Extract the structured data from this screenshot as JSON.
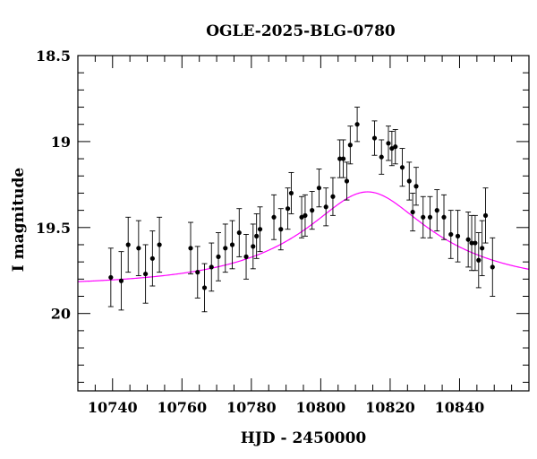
{
  "chart_data": {
    "type": "scatter",
    "title": "OGLE-2025-BLG-0780",
    "xlabel": "HJD - 2450000",
    "ylabel": "I magnitude",
    "xlim": [
      10730,
      10860
    ],
    "ylim": [
      20.45,
      18.5
    ],
    "y_inverted": true,
    "x_ticks": [
      10740,
      10760,
      10780,
      10800,
      10820,
      10840
    ],
    "x_tick_labels": [
      "10740",
      "10760",
      "10780",
      "10800",
      "10820",
      "10840"
    ],
    "y_ticks": [
      18.5,
      19,
      19.5,
      20
    ],
    "y_tick_labels": [
      "18.5",
      "19",
      "19.5",
      "20"
    ],
    "grid": false,
    "colors": {
      "points": "#000000",
      "errorbars": "#000000",
      "model": "#ff00ff"
    },
    "series": [
      {
        "kind": "points_with_errorbars",
        "x": [
          10739.5,
          10742.5,
          10744.5,
          10747.5,
          10749.5,
          10751.5,
          10753.5,
          10762.5,
          10764.5,
          10766.5,
          10768.5,
          10770.5,
          10772.5,
          10774.5,
          10776.5,
          10778.5,
          10780.5,
          10781.5,
          10782.5,
          10786.5,
          10788.5,
          10790.5,
          10791.5,
          10794.5,
          10795.5,
          10797.5,
          10799.5,
          10801.5,
          10803.5,
          10805.5,
          10806.5,
          10807.5,
          10808.5,
          10810.5,
          10815.5,
          10817.5,
          10819.5,
          10820.5,
          10821.5,
          10823.5,
          10825.5,
          10826.5,
          10827.5,
          10829.5,
          10831.5,
          10833.5,
          10835.5,
          10837.5,
          10839.5,
          10842.5,
          10843.5,
          10844.5,
          10845.5,
          10846.5,
          10847.5,
          10849.5
        ],
        "y": [
          19.79,
          19.81,
          19.6,
          19.62,
          19.77,
          19.68,
          19.6,
          19.62,
          19.76,
          19.85,
          19.73,
          19.67,
          19.62,
          19.6,
          19.53,
          19.67,
          19.61,
          19.55,
          19.51,
          19.44,
          19.51,
          19.39,
          19.3,
          19.44,
          19.43,
          19.4,
          19.27,
          19.38,
          19.32,
          19.1,
          19.1,
          19.23,
          19.02,
          18.9,
          18.98,
          19.09,
          19.01,
          19.04,
          19.03,
          19.15,
          19.23,
          19.41,
          19.26,
          19.44,
          19.44,
          19.4,
          19.44,
          19.54,
          19.55,
          19.57,
          19.59,
          19.59,
          19.69,
          19.62,
          19.43,
          19.73
        ],
        "yerr": [
          0.17,
          0.17,
          0.16,
          0.16,
          0.17,
          0.16,
          0.16,
          0.15,
          0.15,
          0.14,
          0.14,
          0.14,
          0.14,
          0.14,
          0.14,
          0.13,
          0.13,
          0.13,
          0.13,
          0.13,
          0.12,
          0.12,
          0.12,
          0.12,
          0.12,
          0.11,
          0.11,
          0.11,
          0.11,
          0.11,
          0.11,
          0.11,
          0.11,
          0.1,
          0.1,
          0.1,
          0.1,
          0.1,
          0.1,
          0.11,
          0.11,
          0.11,
          0.11,
          0.12,
          0.12,
          0.12,
          0.13,
          0.14,
          0.15,
          0.16,
          0.16,
          0.16,
          0.16,
          0.16,
          0.16,
          0.17
        ]
      },
      {
        "kind": "model_curve",
        "model": "pspl",
        "t0": 10813.5,
        "u0": 0.35,
        "tE": 45,
        "baseline_mag": 19.84,
        "fs": 0.33
      }
    ]
  }
}
